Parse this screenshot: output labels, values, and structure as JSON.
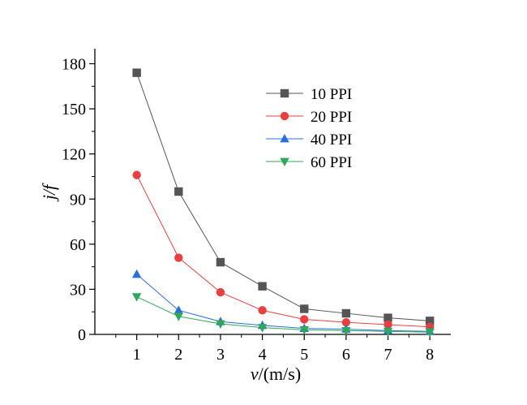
{
  "chart_data": {
    "type": "line",
    "title": "",
    "xlabel": {
      "italic": "v",
      "rest": "/(m/s)"
    },
    "ylabel": {
      "italic": "j/f"
    },
    "x": [
      1,
      2,
      3,
      4,
      5,
      6,
      7,
      8
    ],
    "xlim": [
      0,
      8.5
    ],
    "ylim": [
      0,
      190
    ],
    "xticks": [
      1,
      2,
      3,
      4,
      5,
      6,
      7,
      8
    ],
    "yticks": [
      0,
      30,
      60,
      90,
      120,
      150,
      180
    ],
    "grid": false,
    "legend_position": "top-right",
    "series": [
      {
        "name": "10 PPI",
        "color": "#555555",
        "marker": "square",
        "values": [
          174,
          95,
          48,
          32,
          17,
          14,
          11,
          9
        ]
      },
      {
        "name": "20 PPI",
        "color": "#e84040",
        "marker": "circle",
        "values": [
          106,
          51,
          28,
          16,
          10,
          8,
          6.5,
          5
        ]
      },
      {
        "name": "40 PPI",
        "color": "#2a6fdb",
        "marker": "triangle-up",
        "values": [
          40,
          16,
          8.5,
          6,
          4,
          3.5,
          2.5,
          2
        ]
      },
      {
        "name": "60 PPI",
        "color": "#2fa85a",
        "marker": "triangle-down",
        "values": [
          25,
          12,
          7,
          4.5,
          3,
          2.5,
          2,
          1.5
        ]
      }
    ]
  }
}
